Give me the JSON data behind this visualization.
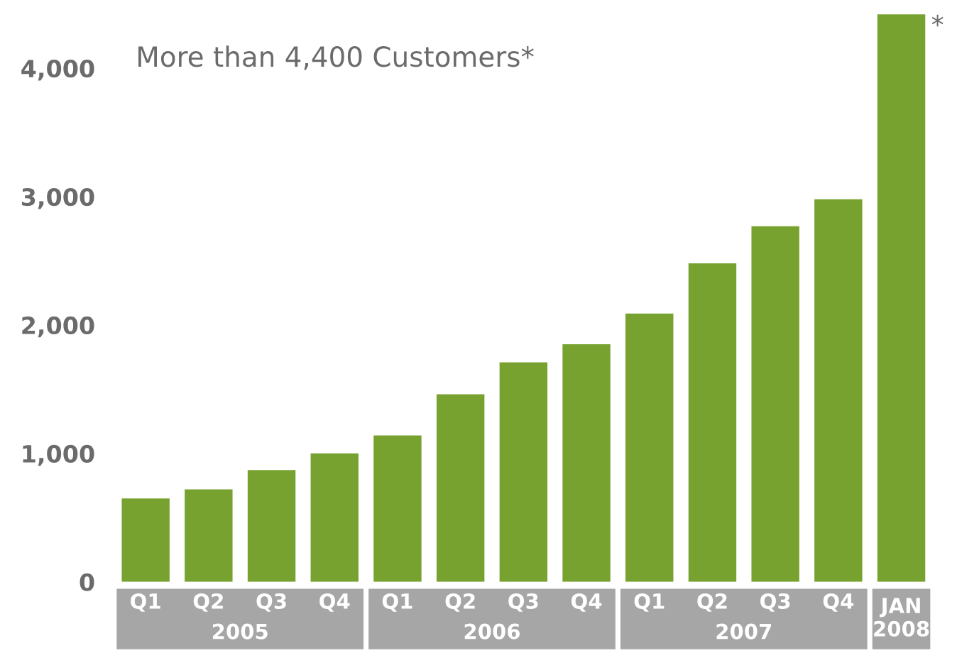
{
  "chart_data": {
    "type": "bar",
    "title": "More than 4,400 Customers*",
    "categories": [
      "Q1",
      "Q2",
      "Q3",
      "Q4",
      "Q1",
      "Q2",
      "Q3",
      "Q4",
      "Q1",
      "Q2",
      "Q3",
      "Q4",
      "JAN\n2008"
    ],
    "values": [
      650,
      720,
      870,
      1000,
      1140,
      1460,
      1710,
      1850,
      2090,
      2480,
      2770,
      2980,
      4420
    ],
    "color": "#78a22f",
    "ylim": [
      0,
      4450
    ],
    "yticks": [
      0,
      {
        "value": 1000,
        "label": "1,000"
      },
      {
        "value": 2000,
        "label": "2,000"
      },
      {
        "value": 3000,
        "label": "3,000"
      },
      {
        "value": 4000,
        "label": "4,000"
      }
    ],
    "annotations": [
      "2005",
      "2006",
      "2007",
      {
        "text": "*",
        "x": "JAN\n2008",
        "y": 4420
      }
    ],
    "grid": false,
    "legend": false
  }
}
